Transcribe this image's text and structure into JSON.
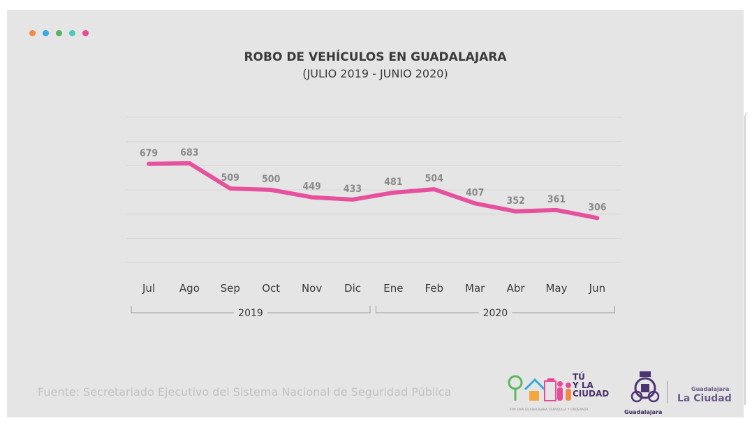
{
  "header": {
    "dot_colors": [
      "#f08a45",
      "#36a9e0",
      "#55b565",
      "#4cc8c0",
      "#e64a9a"
    ]
  },
  "chart_data": {
    "type": "line",
    "title": "ROBO DE VEHÍCULOS EN GUADALAJARA",
    "subtitle": "(JULIO 2019 - JUNIO 2020)",
    "categories": [
      "Jul",
      "Ago",
      "Sep",
      "Oct",
      "Nov",
      "Dic",
      "Ene",
      "Feb",
      "Mar",
      "Abr",
      "May",
      "Jun"
    ],
    "series": [
      {
        "values": [
          679,
          683,
          509,
          500,
          449,
          433,
          481,
          504,
          407,
          352,
          361,
          306
        ],
        "color": "#e6519e"
      }
    ],
    "year_groups": [
      {
        "label": "2019",
        "from": 0,
        "to": 5
      },
      {
        "label": "2020",
        "from": 6,
        "to": 11
      }
    ],
    "ylim": [
      0,
      1000
    ],
    "grid": true,
    "data_labels": true,
    "line_color": "#e6519e",
    "grid_color": "#d6d6d6",
    "label_color": "#8a8a8a"
  },
  "footer": {
    "source": "Fuente: Secretariado Ejecutivo del Sistema Nacional de Seguridad Pública"
  },
  "logos": {
    "tu_y_la_ciudad": "TÚ\nY LA\nCIUDAD",
    "tu_tagline": "POR UNA GUADALAJARA TRANQUILA Y ORDENADA",
    "gobierno_label": "Guadalajara",
    "gdl_small": "Guadalajara",
    "gdl_big": "La Ciudad"
  }
}
